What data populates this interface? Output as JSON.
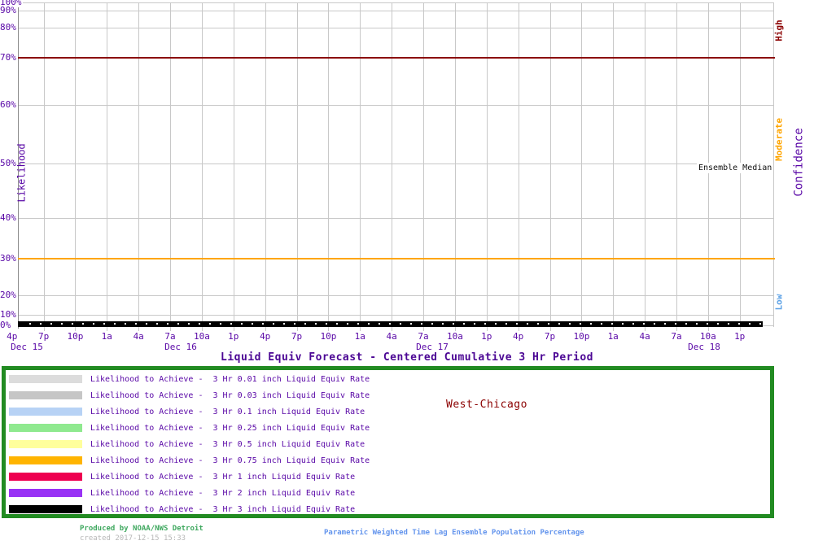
{
  "chart": {
    "title": "Liquid Equiv Forecast - Centered Cumulative 3 Hr Period",
    "y_axis_label": "Likelihood",
    "y_ticks": [
      "100%",
      "90%",
      "80%",
      "70%",
      "60%",
      "50%",
      "40%",
      "30%",
      "20%",
      "10%",
      "0%"
    ],
    "x_ticks": [
      "4p",
      "7p",
      "10p",
      "1a",
      "4a",
      "7a",
      "10a",
      "1p",
      "4p",
      "7p",
      "10p",
      "1a",
      "4a",
      "7a",
      "10a",
      "1p",
      "4p",
      "7p",
      "10p",
      "1a",
      "4a",
      "7a",
      "10a",
      "1p"
    ],
    "x_dates": [
      "Dec 15",
      "Dec 16",
      "Dec 17",
      "Dec 18"
    ],
    "right_axis_label": "Confidence",
    "confidence_levels": [
      {
        "label": "High",
        "color": "#8b0000"
      },
      {
        "label": "Moderate",
        "color": "#ffa500"
      },
      {
        "label": "Low",
        "color": "#5da2e6"
      }
    ],
    "annotation_ensemble_median": "Ensemble Median",
    "grid_color": "#c8c8c8",
    "axis_text_color": "#5806a6"
  },
  "legend": {
    "location_label": "West-Chicago",
    "items": [
      {
        "color": "#dcdcdc",
        "label": "Likelihood to Achieve -  3 Hr 0.01 inch Liquid Equiv Rate"
      },
      {
        "color": "#c6c6c6",
        "label": "Likelihood to Achieve -  3 Hr 0.03 inch Liquid Equiv Rate"
      },
      {
        "color": "#b7d2f5",
        "label": "Likelihood to Achieve -  3 Hr 0.1 inch Liquid Equiv Rate"
      },
      {
        "color": "#8fe98f",
        "label": "Likelihood to Achieve -  3 Hr 0.25 inch Liquid Equiv Rate"
      },
      {
        "color": "#ffff9c",
        "label": "Likelihood to Achieve -  3 Hr 0.5 inch Liquid Equiv Rate"
      },
      {
        "color": "#ffb400",
        "label": "Likelihood to Achieve -  3 Hr 0.75 inch Liquid Equiv Rate"
      },
      {
        "color": "#ee0050",
        "label": "Likelihood to Achieve -  3 Hr 1 inch Liquid Equiv Rate"
      },
      {
        "color": "#9933f5",
        "label": "Likelihood to Achieve -  3 Hr 2 inch Liquid Equiv Rate"
      },
      {
        "color": "#000000",
        "label": "Likelihood to Achieve -  3 Hr 3 inch Liquid Equiv Rate"
      }
    ],
    "border_color": "#228b22"
  },
  "footer": {
    "produced_by": "Produced by NOAA/NWS Detroit",
    "created": "created 2017-12-15 15:33",
    "method": "Parametric Weighted Time Lag Ensemble Population Percentage"
  },
  "chart_data": {
    "type": "line",
    "title": "Liquid Equiv Forecast - Centered Cumulative 3 Hr Period",
    "location": "West-Chicago",
    "ylabel": "Likelihood",
    "ylim": [
      0,
      100
    ],
    "y_tick_percents": [
      100,
      90,
      80,
      70,
      60,
      50,
      40,
      30,
      20,
      10,
      0
    ],
    "y_scale": "nonlinear probability-style scale (compressed near 0% and 100%)",
    "x_ticks": [
      "4p",
      "7p",
      "10p",
      "1a",
      "4a",
      "7a",
      "10a",
      "1p",
      "4p",
      "7p",
      "10p",
      "1a",
      "4a",
      "7a",
      "10a",
      "1p",
      "4p",
      "7p",
      "10p",
      "1a",
      "4a",
      "7a",
      "10a",
      "1p"
    ],
    "x_dates": [
      "Dec 15",
      "Dec 16",
      "Dec 17",
      "Dec 18"
    ],
    "grid": true,
    "legend_position": "bottom box",
    "series_note": "All nine likelihood series are flat at 0% for every time step (rendered as an overlapping black band along the 0% baseline); ensemble median hourly markers (white dots) also sit at 0%.",
    "series": [
      {
        "name": "Likelihood to Achieve - 3 Hr 0.01 inch Liquid Equiv Rate",
        "color": "#dcdcdc",
        "constant_value_percent": 0
      },
      {
        "name": "Likelihood to Achieve - 3 Hr 0.03 inch Liquid Equiv Rate",
        "color": "#c6c6c6",
        "constant_value_percent": 0
      },
      {
        "name": "Likelihood to Achieve - 3 Hr 0.1 inch Liquid Equiv Rate",
        "color": "#b7d2f5",
        "constant_value_percent": 0
      },
      {
        "name": "Likelihood to Achieve - 3 Hr 0.25 inch Liquid Equiv Rate",
        "color": "#8fe98f",
        "constant_value_percent": 0
      },
      {
        "name": "Likelihood to Achieve - 3 Hr 0.5 inch Liquid Equiv Rate",
        "color": "#ffff9c",
        "constant_value_percent": 0
      },
      {
        "name": "Likelihood to Achieve - 3 Hr 0.75 inch Liquid Equiv Rate",
        "color": "#ffb400",
        "constant_value_percent": 0
      },
      {
        "name": "Likelihood to Achieve - 3 Hr 1 inch Liquid Equiv Rate",
        "color": "#ee0050",
        "constant_value_percent": 0
      },
      {
        "name": "Likelihood to Achieve - 3 Hr 2 inch Liquid Equiv Rate",
        "color": "#9933f5",
        "constant_value_percent": 0
      },
      {
        "name": "Likelihood to Achieve - 3 Hr 3 inch Liquid Equiv Rate",
        "color": "#000000",
        "constant_value_percent": 0
      },
      {
        "name": "Ensemble Median",
        "color": "#000000",
        "marker": "white dots",
        "constant_value_percent": 0
      }
    ],
    "reference_lines": [
      {
        "y_percent": 70,
        "color": "#8b0000",
        "meaning": "High confidence threshold"
      },
      {
        "y_percent": 30,
        "color": "#ffa500",
        "meaning": "Moderate/Low confidence threshold"
      }
    ]
  }
}
